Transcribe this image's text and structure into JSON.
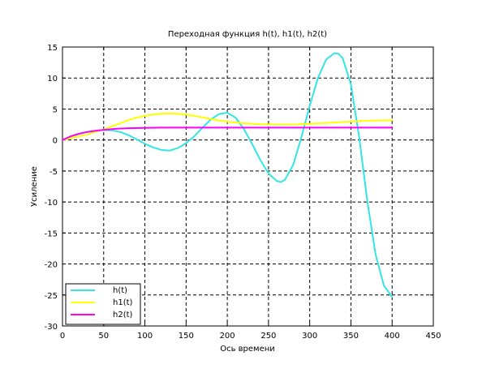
{
  "chart_data": {
    "type": "line",
    "title": "Переходная функция h(t), h1(t), h2(t)",
    "xlabel": "Ось времени",
    "ylabel": "Усиление",
    "xlim": [
      0,
      450
    ],
    "ylim": [
      -30,
      15
    ],
    "xticks": [
      0,
      50,
      100,
      150,
      200,
      250,
      300,
      350,
      400,
      450
    ],
    "yticks": [
      -30,
      -25,
      -20,
      -15,
      -10,
      -5,
      0,
      5,
      10,
      15
    ],
    "grid": true,
    "legend_position": "bottom-left",
    "series": [
      {
        "name": "h(t)",
        "color": "#33e5e5",
        "x": [
          0,
          10,
          20,
          30,
          40,
          50,
          60,
          70,
          80,
          90,
          100,
          110,
          120,
          130,
          140,
          150,
          160,
          170,
          180,
          190,
          200,
          210,
          220,
          230,
          240,
          250,
          260,
          265,
          270,
          280,
          290,
          300,
          310,
          320,
          330,
          335,
          340,
          350,
          360,
          370,
          380,
          390,
          400
        ],
        "y": [
          0,
          0.6,
          1.0,
          1.3,
          1.5,
          1.6,
          1.55,
          1.3,
          0.8,
          0.1,
          -0.6,
          -1.2,
          -1.6,
          -1.7,
          -1.3,
          -0.5,
          0.6,
          2.0,
          3.3,
          4.2,
          4.4,
          3.6,
          1.8,
          -0.6,
          -3.2,
          -5.4,
          -6.6,
          -6.8,
          -6.4,
          -4.0,
          0.5,
          5.5,
          10.0,
          13.0,
          14.0,
          13.9,
          13.2,
          9.0,
          0.5,
          -10.0,
          -18.5,
          -23.5,
          -25.3
        ]
      },
      {
        "name": "h1(t)",
        "color": "#ffff00",
        "x": [
          0,
          10,
          20,
          30,
          40,
          50,
          60,
          70,
          80,
          90,
          100,
          110,
          120,
          130,
          140,
          150,
          160,
          170,
          180,
          190,
          200,
          220,
          240,
          260,
          280,
          300,
          320,
          340,
          360,
          380,
          400
        ],
        "y": [
          0,
          0.3,
          0.6,
          0.9,
          1.3,
          1.7,
          2.2,
          2.7,
          3.2,
          3.6,
          3.9,
          4.1,
          4.25,
          4.3,
          4.25,
          4.1,
          3.9,
          3.65,
          3.4,
          3.15,
          2.95,
          2.7,
          2.55,
          2.5,
          2.5,
          2.6,
          2.75,
          2.9,
          3.05,
          3.15,
          3.2
        ]
      },
      {
        "name": "h2(t)",
        "color": "#ff00ff",
        "x": [
          0,
          10,
          20,
          30,
          40,
          50,
          60,
          70,
          80,
          100,
          120,
          150,
          200,
          250,
          300,
          350,
          400
        ],
        "y": [
          0,
          0.6,
          1.0,
          1.3,
          1.5,
          1.65,
          1.75,
          1.85,
          1.9,
          1.95,
          2.0,
          2.0,
          2.0,
          2.0,
          2.0,
          2.0,
          2.0
        ]
      }
    ]
  }
}
